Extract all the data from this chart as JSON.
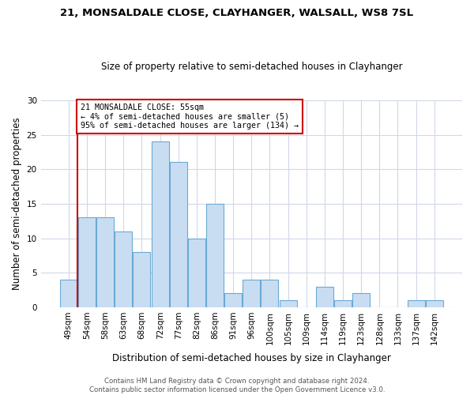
{
  "title": "21, MONSALDALE CLOSE, CLAYHANGER, WALSALL, WS8 7SL",
  "subtitle": "Size of property relative to semi-detached houses in Clayhanger",
  "xlabel": "Distribution of semi-detached houses by size in Clayhanger",
  "ylabel": "Number of semi-detached properties",
  "categories": [
    "49sqm",
    "54sqm",
    "58sqm",
    "63sqm",
    "68sqm",
    "72sqm",
    "77sqm",
    "82sqm",
    "86sqm",
    "91sqm",
    "96sqm",
    "100sqm",
    "105sqm",
    "109sqm",
    "114sqm",
    "119sqm",
    "123sqm",
    "128sqm",
    "133sqm",
    "137sqm",
    "142sqm"
  ],
  "values": [
    4,
    13,
    13,
    11,
    8,
    24,
    21,
    10,
    15,
    2,
    4,
    4,
    1,
    0,
    3,
    1,
    2,
    0,
    0,
    1,
    1
  ],
  "bar_color": "#c9ddf2",
  "bar_edge_color": "#6aaad4",
  "vline_color": "#cc0000",
  "annotation_text": "21 MONSALDALE CLOSE: 55sqm\n← 4% of semi-detached houses are smaller (5)\n95% of semi-detached houses are larger (134) →",
  "annotation_box_color": "#ffffff",
  "annotation_box_edge": "#cc0000",
  "footer": "Contains HM Land Registry data © Crown copyright and database right 2024.\nContains public sector information licensed under the Open Government Licence v3.0.",
  "ylim": [
    0,
    30
  ],
  "yticks": [
    0,
    5,
    10,
    15,
    20,
    25,
    30
  ],
  "background_color": "#ffffff",
  "grid_color": "#d0d8e8"
}
